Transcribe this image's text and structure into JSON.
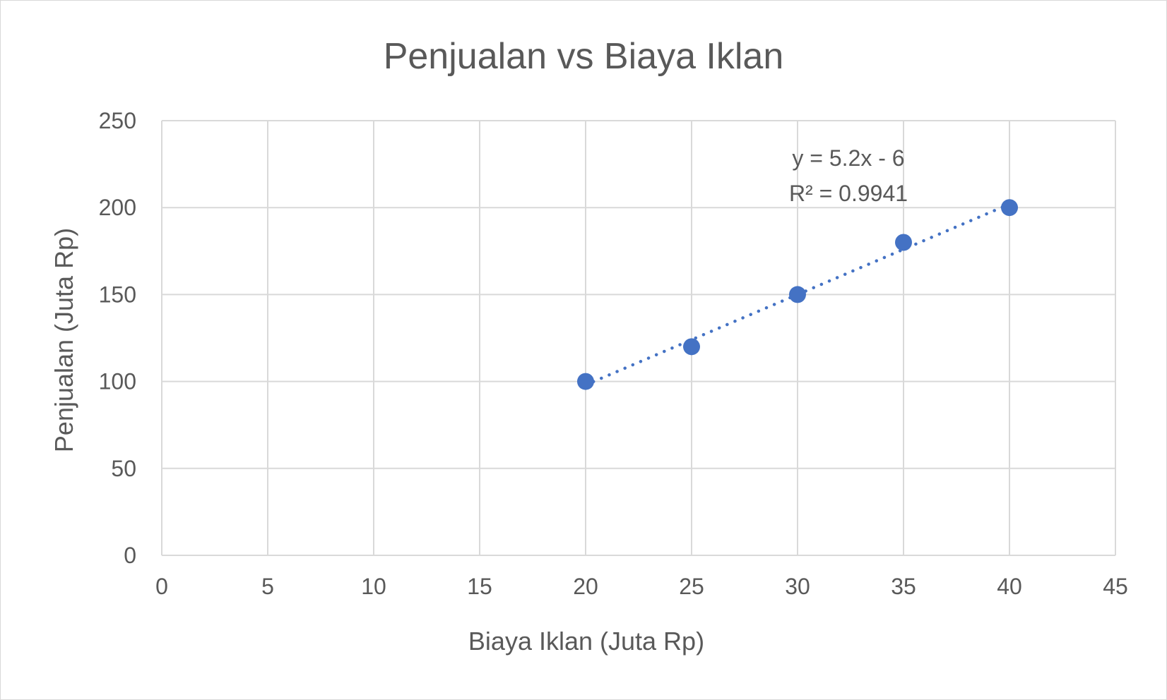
{
  "chart_data": {
    "type": "scatter",
    "title": "Penjualan vs Biaya Iklan",
    "xlabel": "Biaya Iklan (Juta Rp)",
    "ylabel": "Penjualan (Juta Rp)",
    "xlim": [
      0,
      45
    ],
    "ylim": [
      0,
      250
    ],
    "x_ticks": [
      0,
      5,
      10,
      15,
      20,
      25,
      30,
      35,
      40,
      45
    ],
    "y_ticks": [
      0,
      50,
      100,
      150,
      200,
      250
    ],
    "grid": true,
    "series": [
      {
        "color": "#4472c4",
        "points": [
          {
            "x": 20,
            "y": 100
          },
          {
            "x": 25,
            "y": 120
          },
          {
            "x": 30,
            "y": 150
          },
          {
            "x": 35,
            "y": 180
          },
          {
            "x": 40,
            "y": 200
          }
        ]
      }
    ],
    "trendline": {
      "type": "linear",
      "style": "dotted",
      "color": "#4472c4",
      "slope": 5.2,
      "intercept": -6,
      "x_range": [
        20,
        40
      ],
      "equation": "y = 5.2x - 6",
      "r_squared": "R² = 0.9941"
    },
    "colors": {
      "gridline": "#d9d9d9",
      "text": "#595959",
      "marker": "#4472c4"
    }
  }
}
